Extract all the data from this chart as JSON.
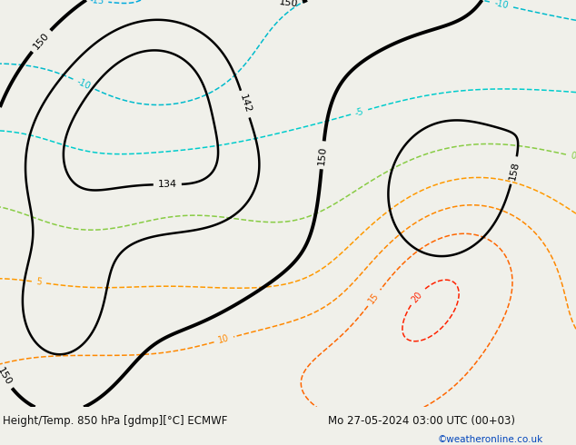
{
  "title_left": "Height/Temp. 850 hPa [gdmp][°C] ECMWF",
  "title_right": "Mo 27-05-2024 03:00 UTC (00+03)",
  "credit": "©weatheronline.co.uk",
  "bg_color": "#f0f0ea",
  "fig_width": 6.34,
  "fig_height": 4.9,
  "dpi": 100,
  "land_color": "#c8e8a0",
  "sea_color": "#c8c8c8",
  "border_color": "#888888",
  "font_size_bottom": 8.5,
  "font_size_credit": 7.5,
  "bottom_text_color": "#111111",
  "credit_color": "#0044bb",
  "geo_color": "#000000",
  "temp_colors": {
    "n20": "#0088cc",
    "n15": "#00aadd",
    "n10": "#00bbcc",
    "n5": "#00cccc",
    "p0": "#88cc44",
    "p5": "#ff9900",
    "p10": "#ff8800",
    "p15": "#ff6600",
    "p20": "#ff2200",
    "p25": "#ff44bb"
  }
}
